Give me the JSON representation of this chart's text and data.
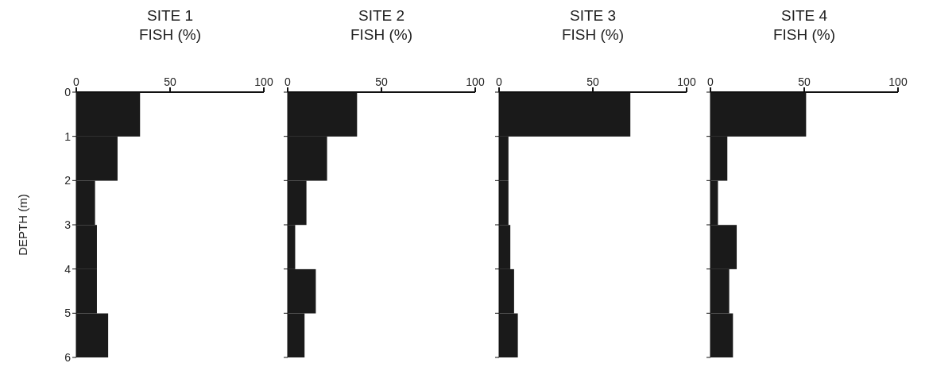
{
  "chart_data": [
    {
      "type": "histogram",
      "orientation": "horizontal",
      "title": "SITE 1",
      "xlabel": "FISH (%)",
      "ylabel": "DEPTH (m)",
      "bins": [
        0,
        1,
        2,
        3,
        4,
        5,
        6
      ],
      "values": [
        34,
        22,
        10,
        11,
        11,
        17
      ],
      "color": "#1a1a1a",
      "xlim": [
        0,
        100
      ],
      "xticks": [
        0,
        50,
        100
      ],
      "ylim": [
        6,
        0
      ],
      "yticks": [
        0,
        1,
        2,
        3,
        4,
        5,
        6
      ]
    },
    {
      "type": "histogram",
      "orientation": "horizontal",
      "title": "SITE 2",
      "xlabel": "FISH (%)",
      "bins": [
        0,
        1,
        2,
        3,
        4,
        5,
        6
      ],
      "values": [
        37,
        21,
        10,
        4,
        15,
        9
      ],
      "color": "#1a1a1a",
      "xlim": [
        0,
        100
      ],
      "xticks": [
        0,
        50,
        100
      ],
      "ylim": [
        6,
        0
      ],
      "yticks": [
        0,
        1,
        2,
        3,
        4,
        5,
        6
      ],
      "tick_labels": "x"
    },
    {
      "type": "histogram",
      "orientation": "horizontal",
      "title": "SITE 3",
      "xlabel": "FISH (%)",
      "bins": [
        0,
        1,
        2,
        3,
        4,
        5,
        6
      ],
      "values": [
        70,
        5,
        5,
        6,
        8,
        10
      ],
      "color": "#1a1a1a",
      "xlim": [
        0,
        100
      ],
      "xticks": [
        0,
        50,
        100
      ],
      "ylim": [
        6,
        0
      ],
      "yticks": [
        0,
        1,
        2,
        3,
        4,
        5,
        6
      ],
      "tick_labels": "x"
    },
    {
      "type": "histogram",
      "orientation": "horizontal",
      "title": "SITE 4",
      "xlabel": "FISH (%)",
      "bins": [
        0,
        1,
        2,
        3,
        4,
        5,
        6
      ],
      "values": [
        51,
        9,
        4,
        14,
        10,
        12
      ],
      "color": "#1a1a1a",
      "xlim": [
        0,
        100
      ],
      "xticks": [
        0,
        50,
        100
      ],
      "ylim": [
        6,
        0
      ],
      "yticks": [
        0,
        1,
        2,
        3,
        4,
        5,
        6
      ],
      "tick_labels": "x"
    }
  ]
}
